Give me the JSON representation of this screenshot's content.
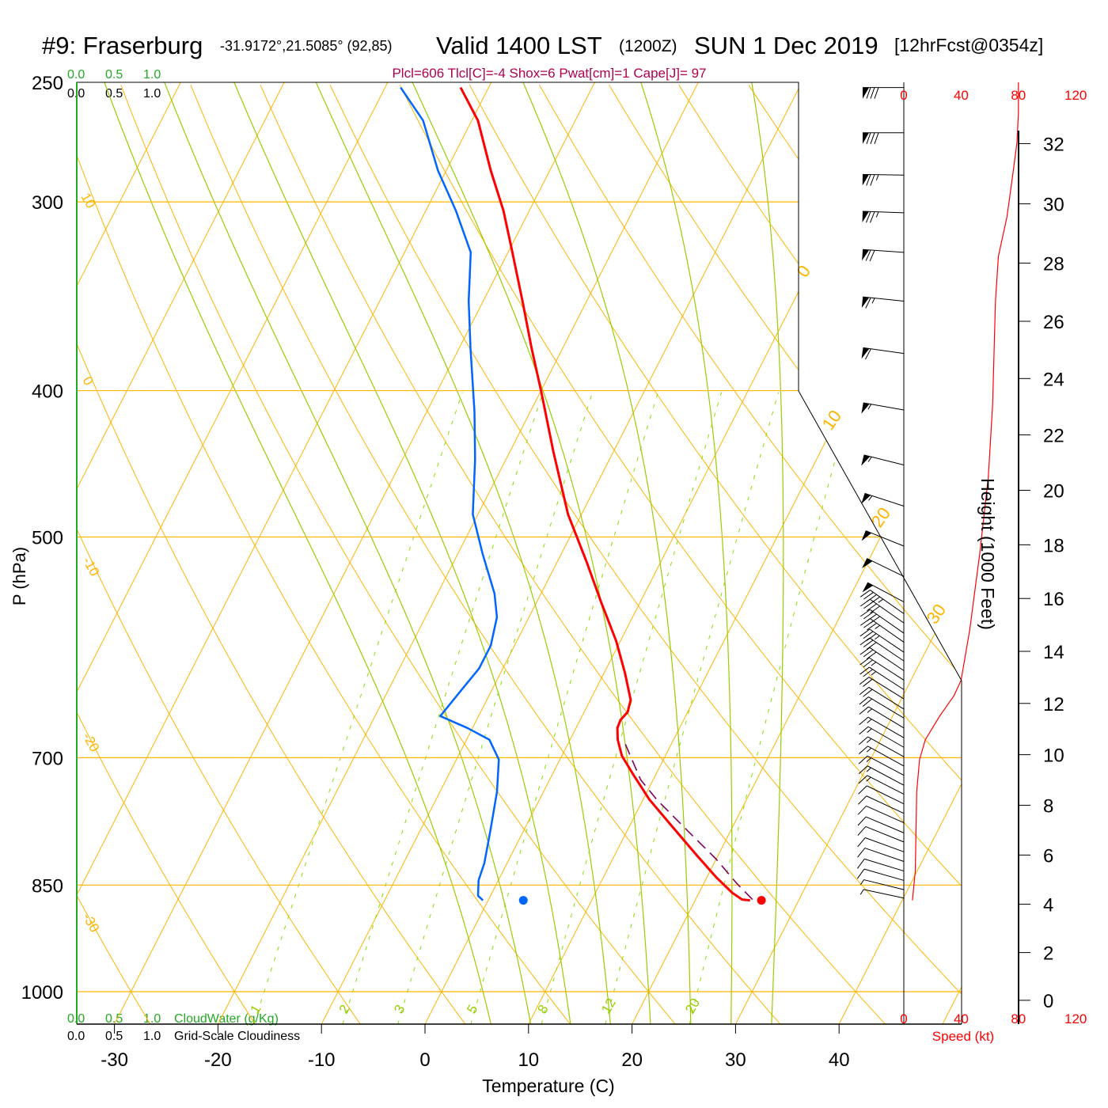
{
  "title": {
    "station": "#9: Fraserburg",
    "coords": "-31.9172°,21.5085° (92,85)",
    "valid": "Valid 1400 LST",
    "utc": "(1200Z)",
    "date": "SUN 1 Dec 2019",
    "forecast": "[12hrFcst@0354z]"
  },
  "indices": "Plcl=606 Tlcl[C]=-4 Shox=6 Pwat[cm]=1 Cape[J]= 97",
  "cloud_axes": {
    "cloudwater_ticks": [
      "0.0",
      "0.5",
      "1.0"
    ],
    "cloudwater_label": "CloudWater (g/Kg)",
    "cloudiness_ticks": [
      "0.0",
      "0.5",
      "1.0"
    ],
    "cloudiness_label": "Grid-Scale Cloudiness"
  },
  "colors": {
    "temperature": "#ff0000",
    "dewpoint": "#0066ff",
    "parcel": "#800060",
    "isotherm": "#ffb400",
    "moist_adiabat": "#99cc00",
    "mixing_ratio": "#88dd00",
    "indices": "#b0004f",
    "cloudwater": "#22aa22"
  },
  "chart_data": {
    "type": "line",
    "subtype": "skew-T log-P sounding",
    "xlabel": "Temperature (C)",
    "ylabel": "P (hPa)",
    "x_ticks": [
      -30,
      -20,
      -10,
      0,
      10,
      20,
      30,
      40
    ],
    "pressure_ticks": [
      250,
      300,
      400,
      500,
      700,
      850,
      1000
    ],
    "ylim_hpa": [
      1051,
      250
    ],
    "series": [
      {
        "name": "Temperature",
        "points_p_T": [
          [
            252,
            -42.7
          ],
          [
            265,
            -39.4
          ],
          [
            286,
            -35.7
          ],
          [
            304,
            -32.5
          ],
          [
            321,
            -30.0
          ],
          [
            349,
            -26.2
          ],
          [
            375,
            -23.0
          ],
          [
            400,
            -20.0
          ],
          [
            439,
            -15.8
          ],
          [
            483,
            -11.3
          ],
          [
            519,
            -7.2
          ],
          [
            552,
            -3.8
          ],
          [
            586,
            -0.4
          ],
          [
            615,
            2.0
          ],
          [
            641,
            3.9
          ],
          [
            653,
            4.2
          ],
          [
            661,
            3.9
          ],
          [
            669,
            4.0
          ],
          [
            681,
            4.6
          ],
          [
            698,
            5.8
          ],
          [
            719,
            7.9
          ],
          [
            746,
            10.6
          ],
          [
            778,
            14.2
          ],
          [
            812,
            17.9
          ],
          [
            840,
            20.9
          ],
          [
            860,
            23.2
          ],
          [
            869,
            24.5
          ],
          [
            870,
            25.3
          ]
        ]
      },
      {
        "name": "Dewpoint",
        "points_p_T": [
          [
            252,
            -48.5
          ],
          [
            265,
            -44.7
          ],
          [
            286,
            -40.8
          ],
          [
            304,
            -37.1
          ],
          [
            324,
            -33.6
          ],
          [
            349,
            -31.4
          ],
          [
            375,
            -28.9
          ],
          [
            413,
            -25.4
          ],
          [
            444,
            -23.0
          ],
          [
            483,
            -20.5
          ],
          [
            513,
            -17.6
          ],
          [
            545,
            -14.5
          ],
          [
            565,
            -13.1
          ],
          [
            590,
            -12.3
          ],
          [
            611,
            -12.3
          ],
          [
            630,
            -12.9
          ],
          [
            657,
            -13.7
          ],
          [
            669,
            -10.5
          ],
          [
            681,
            -7.8
          ],
          [
            702,
            -5.9
          ],
          [
            737,
            -4.5
          ],
          [
            783,
            -3.2
          ],
          [
            822,
            -2.2
          ],
          [
            844,
            -1.9
          ],
          [
            864,
            -1.2
          ],
          [
            870,
            -0.5
          ]
        ]
      },
      {
        "name": "Parcel",
        "points_p_T": [
          [
            869,
            25.5
          ],
          [
            847,
            23.1
          ],
          [
            817,
            20.0
          ],
          [
            783,
            15.9
          ],
          [
            746,
            11.3
          ],
          [
            724,
            8.8
          ],
          [
            685,
            5.5
          ]
        ]
      }
    ],
    "surface_temperature": {
      "p": 870,
      "T": 26.4
    },
    "surface_dewpoint": {
      "p": 870,
      "T": 3.4
    },
    "isotherms_c": [
      -100,
      -90,
      -80,
      -70,
      -60,
      -50,
      -40,
      -30,
      -20,
      -10,
      0,
      10,
      20,
      30,
      40,
      50
    ],
    "isotherm_labels": [
      "0",
      "10",
      "20",
      "30"
    ],
    "dry_adiabats_theta_c": [
      -30,
      -20,
      -10,
      0,
      10,
      20,
      30,
      40,
      50,
      60,
      70,
      80,
      90,
      100,
      110,
      120,
      130,
      140,
      150
    ],
    "dry_adiabat_labels": [
      "10",
      "0",
      "-10",
      "-20",
      "-30"
    ],
    "moist_adiabats_thetaw_c": [
      4,
      8,
      12,
      16,
      20,
      24,
      28,
      32
    ],
    "mixing_ratios_gkg": [
      "1",
      "2",
      "3",
      "5",
      "8",
      "12",
      "20"
    ],
    "wind_speed_axis": {
      "label": "Speed (kt)",
      "ticks": [
        "0",
        "40",
        "80",
        "120"
      ]
    },
    "wind_speed_profile_p_kt": [
      [
        870,
        6
      ],
      [
        832,
        8
      ],
      [
        737,
        9
      ],
      [
        702,
        11
      ],
      [
        681,
        15
      ],
      [
        657,
        25
      ],
      [
        637,
        35
      ],
      [
        622,
        40
      ],
      [
        576,
        46
      ],
      [
        513,
        53
      ],
      [
        456,
        59
      ],
      [
        409,
        62
      ],
      [
        349,
        64
      ],
      [
        326,
        66
      ],
      [
        307,
        72
      ],
      [
        288,
        76
      ],
      [
        274,
        79
      ],
      [
        262,
        80
      ],
      [
        250,
        80
      ]
    ],
    "wind_barbs_p_kt_dir": [
      [
        252,
        80,
        270
      ],
      [
        270,
        80,
        270
      ],
      [
        288,
        75,
        271
      ],
      [
        305,
        75,
        272
      ],
      [
        324,
        70,
        274
      ],
      [
        349,
        65,
        276
      ],
      [
        378,
        60,
        278
      ],
      [
        412,
        55,
        280
      ],
      [
        448,
        55,
        284
      ],
      [
        477,
        55,
        288
      ],
      [
        507,
        50,
        292
      ],
      [
        531,
        50,
        296
      ],
      [
        552,
        50,
        298
      ],
      [
        562,
        45,
        305
      ],
      [
        570,
        40,
        305
      ],
      [
        579,
        40,
        305
      ],
      [
        587,
        35,
        305
      ],
      [
        596,
        35,
        304
      ],
      [
        604,
        30,
        304
      ],
      [
        613,
        30,
        304
      ],
      [
        622,
        25,
        303
      ],
      [
        631,
        25,
        303
      ],
      [
        640,
        20,
        302
      ],
      [
        650,
        20,
        302
      ],
      [
        659,
        20,
        301
      ],
      [
        669,
        15,
        301
      ],
      [
        679,
        15,
        300
      ],
      [
        689,
        15,
        300
      ],
      [
        699,
        15,
        299
      ],
      [
        709,
        15,
        299
      ],
      [
        719,
        15,
        298
      ],
      [
        730,
        15,
        298
      ],
      [
        740,
        15,
        297
      ],
      [
        751,
        10,
        296
      ],
      [
        762,
        10,
        295
      ],
      [
        773,
        10,
        294
      ],
      [
        785,
        10,
        293
      ],
      [
        796,
        10,
        292
      ],
      [
        808,
        10,
        290
      ],
      [
        820,
        10,
        289
      ],
      [
        832,
        10,
        287
      ],
      [
        844,
        10,
        286
      ],
      [
        856,
        5,
        284
      ],
      [
        867,
        5,
        282
      ]
    ],
    "height_axis": {
      "label": "Height (1000 Feet)",
      "ticks": [
        "0",
        "2",
        "4",
        "6",
        "8",
        "10",
        "12",
        "14",
        "16",
        "18",
        "20",
        "22",
        "24",
        "26",
        "28",
        "30",
        "32"
      ]
    }
  }
}
